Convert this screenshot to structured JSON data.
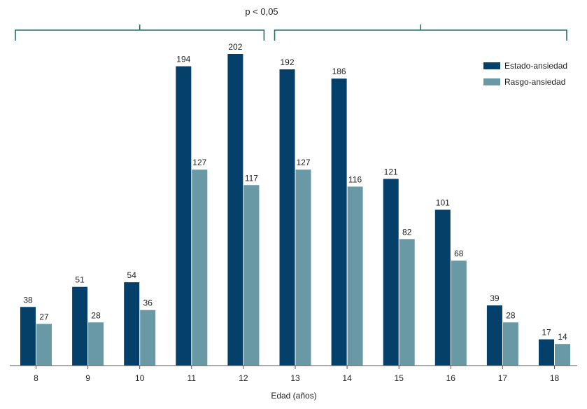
{
  "chart_data": {
    "type": "bar",
    "title": "",
    "xlabel": "Edad (años)",
    "ylabel": "",
    "categories": [
      "8",
      "9",
      "10",
      "11",
      "12",
      "13",
      "14",
      "15",
      "16",
      "17",
      "18"
    ],
    "series": [
      {
        "name": "Estado-ansiedad",
        "color": "#04406a",
        "values": [
          38,
          51,
          54,
          194,
          202,
          192,
          186,
          121,
          101,
          39,
          17
        ]
      },
      {
        "name": "Rasgo-ansiedad",
        "color": "#6999a4",
        "values": [
          27,
          28,
          36,
          127,
          117,
          127,
          116,
          82,
          68,
          28,
          14
        ]
      }
    ],
    "ylim": [
      0,
      202
    ],
    "grid": false,
    "legend_position": "top-right",
    "annotation": {
      "text": "p < 0,05",
      "bracket_color": "#1f6f73",
      "brackets": [
        {
          "from_category": "8",
          "to_category": "12"
        },
        {
          "from_category": "13",
          "to_category": "18"
        }
      ]
    }
  }
}
